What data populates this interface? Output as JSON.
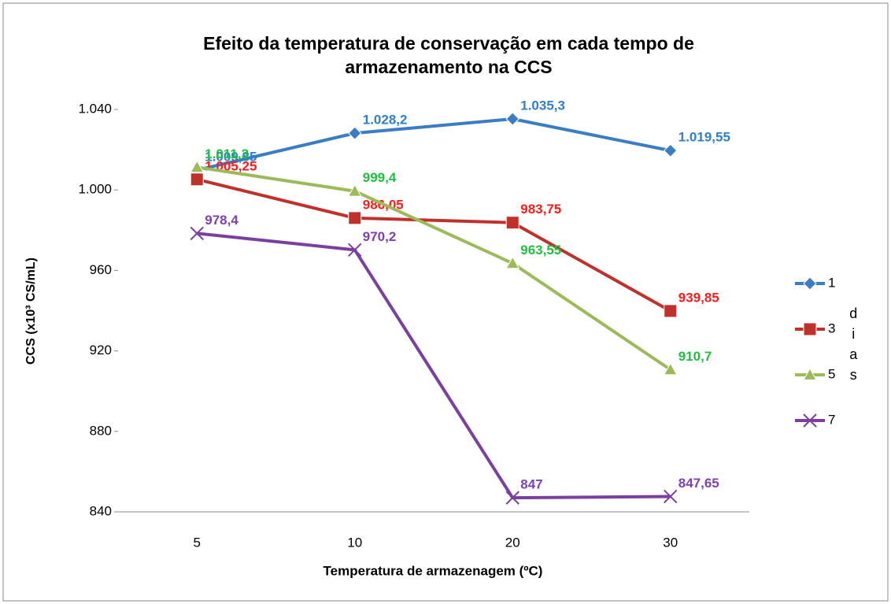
{
  "chart_data": {
    "type": "line",
    "title": "Efeito da temperatura de conservação em cada tempo de armazenamento na CCS",
    "xlabel": "Temperatura de armazenagem  (ºC)",
    "ylabel": "CCS (x10³ CS/mL)",
    "legend_title": "dias",
    "legend": "right",
    "categories": [
      "5",
      "10",
      "20",
      "30"
    ],
    "ylim": [
      840,
      1040
    ],
    "yticks": [
      840,
      880,
      920,
      960,
      {
        "value": 1000,
        "label": "1.000"
      },
      {
        "value": 1040,
        "label": "1.040"
      }
    ],
    "series": [
      {
        "name": "1",
        "color": "#3a7dc4",
        "label_color": "#2f80c8",
        "marker": "diamond",
        "values": [
          1009.85,
          1028.2,
          1035.3,
          1019.55
        ],
        "value_labels": [
          "1.009,85",
          "1.028,2",
          "1.035,3",
          "1.019,55"
        ]
      },
      {
        "name": "3",
        "color": "#c0312c",
        "label_color": "#ff1a1a",
        "marker": "square",
        "values": [
          1005.25,
          986.05,
          983.75,
          939.85
        ],
        "value_labels": [
          "1.005,25",
          "986,05",
          "983,75",
          "939,85"
        ]
      },
      {
        "name": "5",
        "color": "#9bbb59",
        "label_color": "#1fbf3f",
        "marker": "triangle",
        "values": [
          1011.3,
          999.4,
          963.55,
          910.7
        ],
        "value_labels": [
          "1.011,3",
          "999,4",
          "963,55",
          "910,7"
        ]
      },
      {
        "name": "7",
        "color": "#7b3fa0",
        "label_color": "#8040b0",
        "marker": "x",
        "values": [
          978.4,
          970.2,
          847,
          847.65
        ],
        "value_labels": [
          "978,4",
          "970,2",
          "847",
          "847,65"
        ]
      }
    ]
  }
}
